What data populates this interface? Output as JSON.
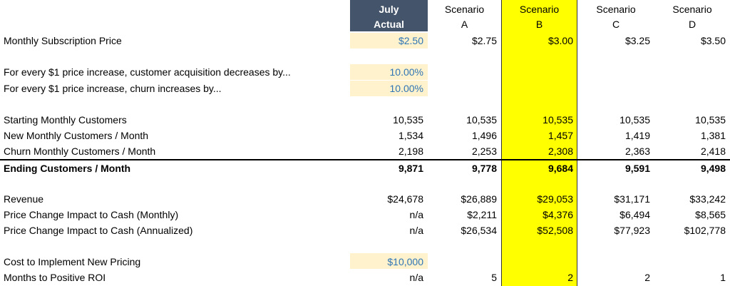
{
  "headers": {
    "july": {
      "line1": "July",
      "line2": "Actual"
    },
    "scenarios": [
      {
        "line1": "Scenario",
        "line2": "A"
      },
      {
        "line1": "Scenario",
        "line2": "B"
      },
      {
        "line1": "Scenario",
        "line2": "C"
      },
      {
        "line1": "Scenario",
        "line2": "D"
      }
    ]
  },
  "rows": {
    "price": {
      "label": "Monthly Subscription Price",
      "values": [
        "$2.50",
        "$2.75",
        "$3.00",
        "$3.25",
        "$3.50"
      ]
    },
    "acq": {
      "label": "For every $1 price increase, customer acquisition decreases by...",
      "values": [
        "10.00%"
      ]
    },
    "churn_inc": {
      "label": "For every $1 price increase, churn increases by...",
      "values": [
        "10.00%"
      ]
    },
    "starting": {
      "label": "Starting Monthly Customers",
      "values": [
        "10,535",
        "10,535",
        "10,535",
        "10,535",
        "10,535"
      ]
    },
    "new": {
      "label": "New Monthly Customers / Month",
      "values": [
        "1,534",
        "1,496",
        "1,457",
        "1,419",
        "1,381"
      ]
    },
    "churn": {
      "label": "Churn Monthly Customers / Month",
      "values": [
        "2,198",
        "2,253",
        "2,308",
        "2,363",
        "2,418"
      ]
    },
    "ending": {
      "label": "Ending Customers / Month",
      "values": [
        "9,871",
        "9,778",
        "9,684",
        "9,591",
        "9,498"
      ]
    },
    "revenue": {
      "label": "Revenue",
      "values": [
        "$24,678",
        "$26,889",
        "$29,053",
        "$31,171",
        "$33,242"
      ]
    },
    "impact_m": {
      "label": "Price Change Impact to Cash (Monthly)",
      "values": [
        "n/a",
        "$2,211",
        "$4,376",
        "$6,494",
        "$8,565"
      ]
    },
    "impact_a": {
      "label": "Price Change Impact to Cash (Annualized)",
      "values": [
        "n/a",
        "$26,534",
        "$52,508",
        "$77,923",
        "$102,778"
      ]
    },
    "cost": {
      "label": "Cost to Implement New Pricing",
      "values": [
        "$10,000"
      ]
    },
    "roi": {
      "label": "Months to Positive ROI",
      "values": [
        "n/a",
        "5",
        "2",
        "2",
        "1"
      ]
    }
  },
  "colors": {
    "header_bg": "#44546a",
    "input_bg": "#fff2cc",
    "input_text": "#2e75b6",
    "highlight": "#ffff00"
  }
}
